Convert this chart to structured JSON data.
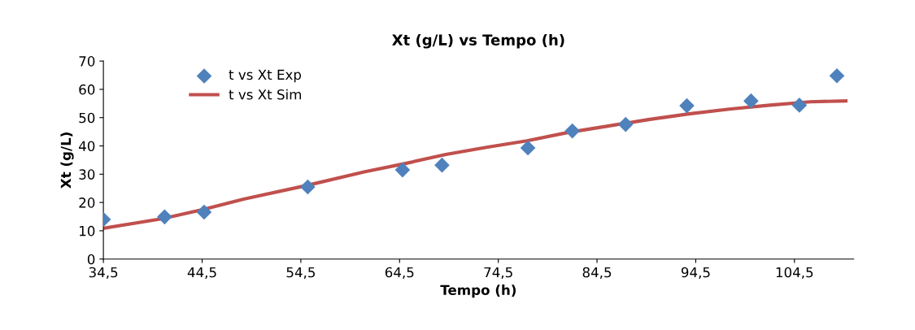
{
  "chart_data": {
    "type": "scatter",
    "title": "Xt (g/L) vs Tempo (h)",
    "xlabel": "Tempo (h)",
    "ylabel": "Xt (g/L)",
    "xlim": [
      34.5,
      110.5
    ],
    "ylim": [
      0,
      70
    ],
    "xticks": [
      {
        "value": 34.5,
        "label": "34,5"
      },
      {
        "value": 44.5,
        "label": "44,5"
      },
      {
        "value": 54.5,
        "label": "54,5"
      },
      {
        "value": 64.5,
        "label": "64,5"
      },
      {
        "value": 74.5,
        "label": "74,5"
      },
      {
        "value": 84.5,
        "label": "84,5"
      },
      {
        "value": 94.5,
        "label": "94,5"
      },
      {
        "value": 104.5,
        "label": "104,5"
      }
    ],
    "yticks": [
      0,
      10,
      20,
      30,
      40,
      50,
      60,
      70
    ],
    "grid": false,
    "legend": "top left",
    "series": [
      {
        "name": "t vs Xt Exp",
        "marker": "diamond",
        "color": "#4f81bd",
        "x": [
          34.5,
          40.7,
          44.7,
          55.2,
          64.8,
          68.8,
          77.5,
          82.0,
          87.4,
          93.6,
          100.1,
          105.0,
          108.8
        ],
        "values": [
          14.0,
          14.9,
          16.6,
          25.5,
          31.5,
          33.2,
          39.3,
          45.3,
          47.6,
          54.2,
          55.9,
          54.4,
          64.8
        ]
      },
      {
        "name": "t vs Xt Sim",
        "type": "line",
        "marker": "none",
        "line_style": "solid",
        "color": "#c0504d",
        "x": [
          34.5,
          40.5,
          44.6,
          48.7,
          55.2,
          61.0,
          65.1,
          69.2,
          73.3,
          77.4,
          81.5,
          85.6,
          89.7,
          93.8,
          97.9,
          102.0,
          106.1,
          109.7
        ],
        "values": [
          10.9,
          14.3,
          17.5,
          21.2,
          26.1,
          30.9,
          33.8,
          37.0,
          39.5,
          41.8,
          44.7,
          47.0,
          49.3,
          51.3,
          53.0,
          54.4,
          55.6,
          55.9
        ]
      }
    ]
  }
}
